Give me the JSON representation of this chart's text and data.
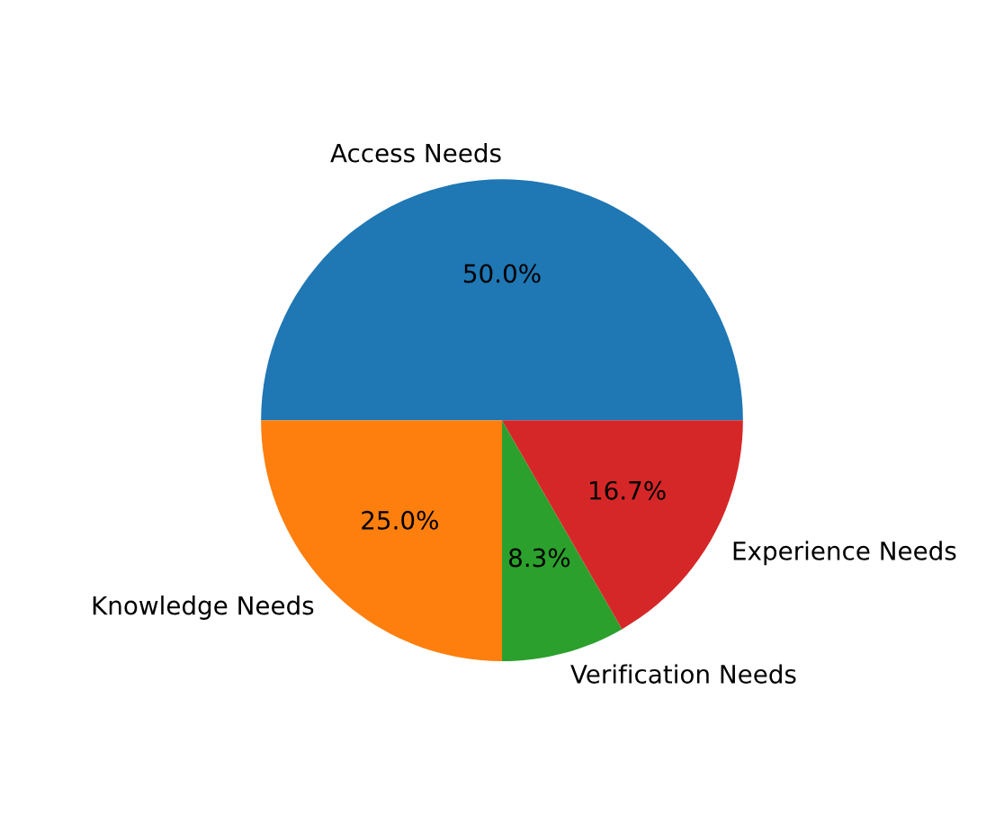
{
  "chart_data": {
    "type": "pie",
    "categories": [
      "Access Needs",
      "Knowledge Needs",
      "Verification Needs",
      "Experience Needs"
    ],
    "values": [
      50,
      25,
      8.3,
      16.7
    ],
    "value_labels": [
      "50.0%",
      "25.0%",
      "8.3%",
      "16.7%"
    ],
    "colors": [
      "#1f77b4",
      "#ff7f0e",
      "#2ca02c",
      "#d62728"
    ]
  }
}
